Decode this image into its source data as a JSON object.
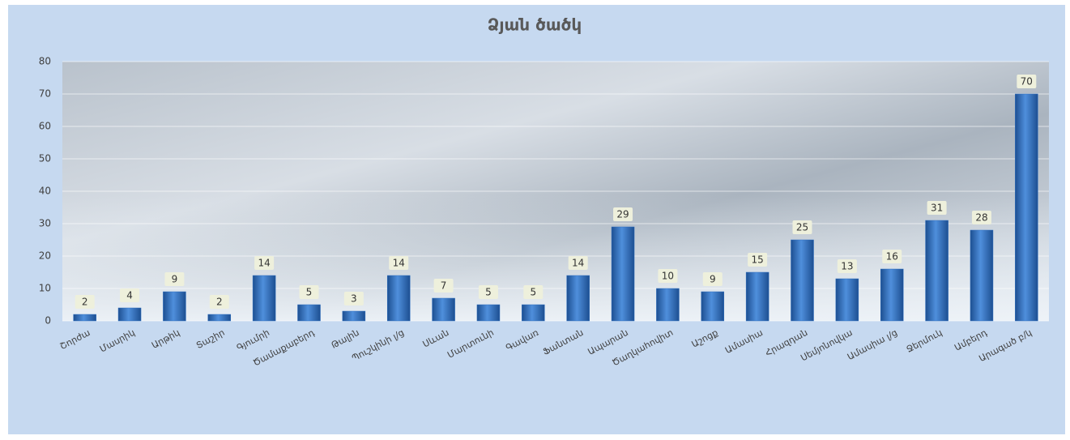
{
  "chart_data": {
    "type": "bar",
    "title": "Ձյան ծածկ",
    "categories": [
      "Շորժա",
      "Մասրիկ",
      "Արթիկ",
      "Տաշիր",
      "Գյումրի",
      "Ծամաքաբերդ",
      "Թալին",
      "Պուշկինի լ/ց",
      "Սևան",
      "Մարտունի",
      "Գավառ",
      "Ֆանտան",
      "Ապարան",
      "Ծաղկահովիտ",
      "Աշոցք",
      "Ամասիա",
      "Հրազդան",
      "Սեմյոնովկա",
      "Ամասիա լ/ց",
      "Ջերմուկ",
      "Ամբերդ",
      "Արագած բ/կ"
    ],
    "values": [
      2,
      4,
      9,
      2,
      14,
      5,
      3,
      14,
      7,
      5,
      5,
      14,
      29,
      10,
      9,
      15,
      25,
      13,
      16,
      31,
      28,
      70
    ],
    "color": "#2e6fc0",
    "ylim": [
      0,
      80
    ],
    "yticks": [
      0,
      10,
      20,
      30,
      40,
      50,
      60,
      70,
      80
    ],
    "grid": true
  }
}
